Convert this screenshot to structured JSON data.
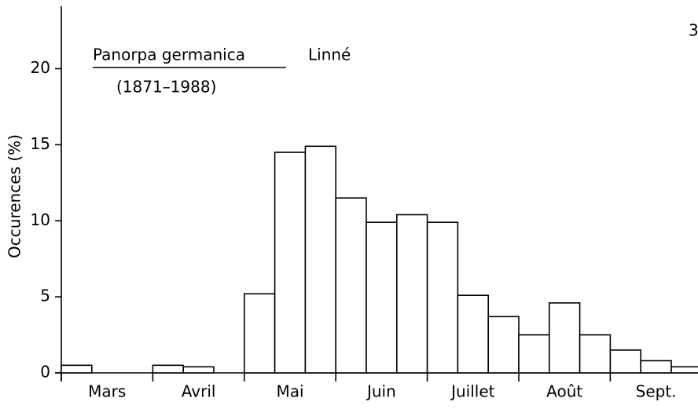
{
  "chart_data": {
    "type": "bar",
    "title": "Panorpa germanica",
    "author": "Linné",
    "subtitle": "(1871–1988)",
    "annotation": "3",
    "y_label": "Occurences (%)",
    "categories": [
      null,
      "Mars",
      null,
      null,
      "Avril",
      null,
      null,
      "Mai",
      null,
      null,
      "Juin",
      null,
      null,
      "Juillet",
      null,
      null,
      "Août",
      null,
      null,
      "Sept.",
      null
    ],
    "values": [
      0.5,
      0,
      0,
      0.5,
      0.4,
      0,
      5.2,
      14.5,
      14.9,
      11.5,
      9.9,
      10.4,
      9.9,
      5.1,
      3.7,
      2.5,
      4.6,
      2.5,
      1.5,
      0.8,
      0.4
    ],
    "color": "#ffffff",
    "ylim": [
      0,
      24
    ],
    "yticks": [
      0,
      5,
      10,
      15,
      20
    ],
    "grid": false
  }
}
